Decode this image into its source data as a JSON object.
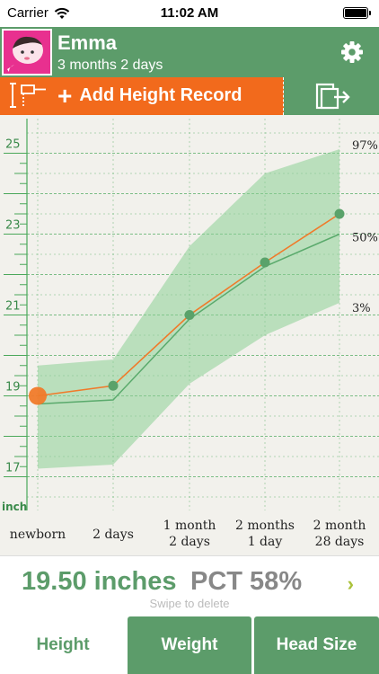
{
  "status_bar": {
    "carrier": "Carrier",
    "time": "11:02 AM"
  },
  "profile": {
    "name": "Emma",
    "age": "3 months 2 days"
  },
  "actions": {
    "add_height_record": "Add Height Record"
  },
  "chart_data": {
    "type": "line",
    "y_unit_label": "inch",
    "y_ticks": [
      "17",
      "19",
      "21",
      "23",
      "25"
    ],
    "ylim": [
      16.5,
      25.5
    ],
    "x_categories": [
      [
        "newborn"
      ],
      [
        "2 days"
      ],
      [
        "1 month",
        "2 days"
      ],
      [
        "2 months",
        "1 day"
      ],
      [
        "2 month",
        "28 days"
      ]
    ],
    "x_positions_days": [
      0,
      2,
      32,
      61,
      88
    ],
    "percentile_labels": [
      "97%",
      "50%",
      "3%"
    ],
    "series": [
      {
        "name": "97%",
        "x": [
          0,
          2,
          32,
          61,
          88
        ],
        "values": [
          19.75,
          19.9,
          22.7,
          24.5,
          25.1
        ]
      },
      {
        "name": "50%",
        "x": [
          0,
          2,
          32,
          61,
          88
        ],
        "values": [
          18.8,
          18.9,
          20.9,
          22.2,
          23.0
        ]
      },
      {
        "name": "3%",
        "x": [
          0,
          2,
          32,
          61,
          88
        ],
        "values": [
          17.2,
          17.3,
          19.3,
          20.5,
          21.3
        ]
      },
      {
        "name": "Emma",
        "x": [
          0,
          2,
          32,
          61,
          88
        ],
        "values": [
          19.0,
          19.25,
          21.0,
          22.3,
          23.5
        ]
      }
    ],
    "colors": {
      "band": "#8ccf96",
      "median": "#5aaa6c",
      "child": "#f07a2a",
      "point": "#5aa26a",
      "grid": "#4aa85a"
    }
  },
  "summary": {
    "height_value": "19.50 inches",
    "percentile": "PCT 58%",
    "hint": "Swipe to delete"
  },
  "tabs": [
    {
      "label": "Height",
      "active": true
    },
    {
      "label": "Weight",
      "active": false
    },
    {
      "label": "Head Size",
      "active": false
    }
  ]
}
